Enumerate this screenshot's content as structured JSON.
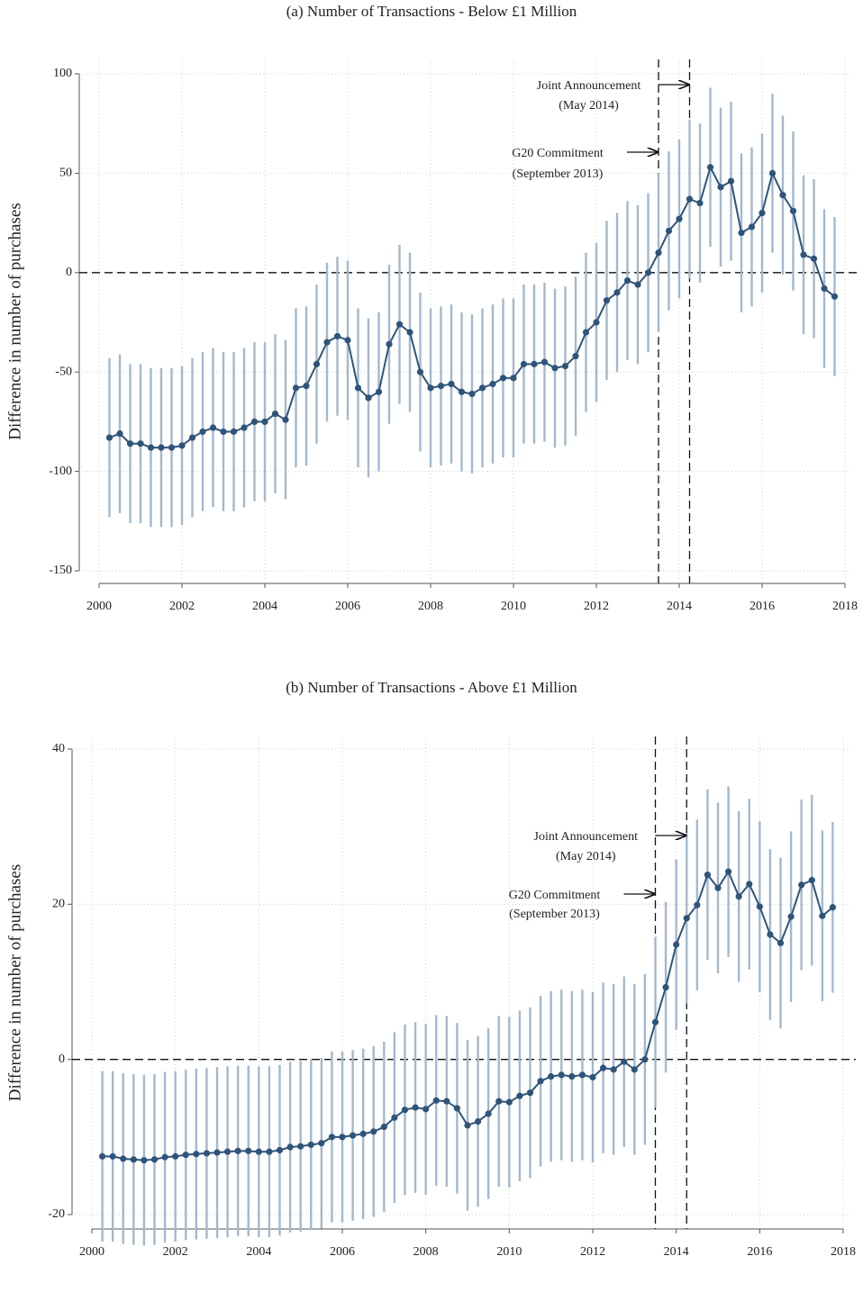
{
  "chart_data": [
    {
      "type": "line",
      "title": "(a) Number of Transactions - Below £1 Million",
      "y_label": "Difference in number of purchases",
      "x": [
        2000.25,
        2000.5,
        2000.75,
        2001,
        2001.25,
        2001.5,
        2001.75,
        2002,
        2002.25,
        2002.5,
        2002.75,
        2003,
        2003.25,
        2003.5,
        2003.75,
        2004,
        2004.25,
        2004.5,
        2004.75,
        2005,
        2005.25,
        2005.5,
        2005.75,
        2006,
        2006.25,
        2006.5,
        2006.75,
        2007,
        2007.25,
        2007.5,
        2007.75,
        2008,
        2008.25,
        2008.5,
        2008.75,
        2009,
        2009.25,
        2009.5,
        2009.75,
        2010,
        2010.25,
        2010.5,
        2010.75,
        2011,
        2011.25,
        2011.5,
        2011.75,
        2012,
        2012.25,
        2012.5,
        2012.75,
        2013,
        2013.25,
        2013.5,
        2013.75,
        2014,
        2014.25,
        2014.5,
        2014.75,
        2015,
        2015.25,
        2015.5,
        2015.75,
        2016,
        2016.25,
        2016.5,
        2016.75,
        2017,
        2017.25,
        2017.5,
        2017.75
      ],
      "series": [
        {
          "color": "#2f5479",
          "error_color": "#a3b8cc",
          "values": [
            -83,
            -81,
            -86,
            -86,
            -88,
            -88,
            -88,
            -87,
            -83,
            -80,
            -78,
            -80,
            -80,
            -78,
            -75,
            -75,
            -71,
            -74,
            -58,
            -57,
            -46,
            -35,
            -32,
            -34,
            -58,
            -63,
            -60,
            -36,
            -26,
            -30,
            -50,
            -58,
            -57,
            -56,
            -60,
            -61,
            -58,
            -56,
            -53,
            -53,
            -46,
            -46,
            -45,
            -48,
            -47,
            -42,
            -30,
            -25,
            -14,
            -10,
            -4,
            -6,
            0,
            10,
            21,
            27,
            37,
            35,
            53,
            43,
            46,
            20,
            23,
            30,
            50,
            39,
            31,
            9,
            7,
            -8,
            -12
          ],
          "errors": [
            40,
            40,
            40,
            40,
            40,
            40,
            40,
            40,
            40,
            40,
            40,
            40,
            40,
            40,
            40,
            40,
            40,
            40,
            40,
            40,
            40,
            40,
            40,
            40,
            40,
            40,
            40,
            40,
            40,
            40,
            40,
            40,
            40,
            40,
            40,
            40,
            40,
            40,
            40,
            40,
            40,
            40,
            40,
            40,
            40,
            40,
            40,
            40,
            40,
            40,
            40,
            40,
            40,
            40,
            40,
            40,
            40,
            40,
            40,
            40,
            40,
            40,
            40,
            40,
            40,
            40,
            40,
            40,
            40,
            40,
            40
          ]
        }
      ],
      "xlim": [
        2000,
        2018
      ],
      "xticks": [
        2000,
        2002,
        2004,
        2006,
        2008,
        2010,
        2012,
        2014,
        2016,
        2018
      ],
      "ylim": [
        -150,
        100
      ],
      "yticks": [
        -150,
        -100,
        -50,
        0,
        50,
        100
      ],
      "grid": true,
      "hline": 0,
      "vlines": [
        2013.5,
        2014.25
      ],
      "annotations": [
        {
          "lines": [
            "Joint Announcement",
            "(May 2014)"
          ],
          "x": 2014.25
        },
        {
          "lines": [
            "G20 Commitment",
            "(September 2013)"
          ],
          "x": 2013.5
        }
      ]
    },
    {
      "type": "line",
      "title": "(b) Number of Transactions - Above £1 Million",
      "y_label": "Difference in number of purchases",
      "x": [
        2000.25,
        2000.5,
        2000.75,
        2001,
        2001.25,
        2001.5,
        2001.75,
        2002,
        2002.25,
        2002.5,
        2002.75,
        2003,
        2003.25,
        2003.5,
        2003.75,
        2004,
        2004.25,
        2004.5,
        2004.75,
        2005,
        2005.25,
        2005.5,
        2005.75,
        2006,
        2006.25,
        2006.5,
        2006.75,
        2007,
        2007.25,
        2007.5,
        2007.75,
        2008,
        2008.25,
        2008.5,
        2008.75,
        2009,
        2009.25,
        2009.5,
        2009.75,
        2010,
        2010.25,
        2010.5,
        2010.75,
        2011,
        2011.25,
        2011.5,
        2011.75,
        2012,
        2012.25,
        2012.5,
        2012.75,
        2013,
        2013.25,
        2013.5,
        2013.75,
        2014,
        2014.25,
        2014.5,
        2014.75,
        2015,
        2015.25,
        2015.5,
        2015.75,
        2016,
        2016.25,
        2016.5,
        2016.75,
        2017,
        2017.25,
        2017.5,
        2017.75
      ],
      "series": [
        {
          "color": "#2f5479",
          "error_color": "#a3b8cc",
          "values": [
            -12.5,
            -12.5,
            -12.8,
            -12.9,
            -13,
            -12.9,
            -12.6,
            -12.5,
            -12.3,
            -12.2,
            -12.1,
            -12,
            -11.9,
            -11.8,
            -11.8,
            -11.9,
            -11.9,
            -11.7,
            -11.3,
            -11.2,
            -11,
            -10.8,
            -10,
            -10,
            -9.8,
            -9.6,
            -9.3,
            -8.7,
            -7.5,
            -6.5,
            -6.2,
            -6.4,
            -5.3,
            -5.4,
            -6.3,
            -8.5,
            -8,
            -7,
            -5.4,
            -5.5,
            -4.7,
            -4.3,
            -2.8,
            -2.2,
            -2,
            -2.2,
            -2,
            -2.3,
            -1.1,
            -1.3,
            -0.3,
            -1.3,
            0,
            4.8,
            9.3,
            14.8,
            18.2,
            19.9,
            23.8,
            22.1,
            24.2,
            21,
            22.6,
            19.7,
            16.1,
            15,
            18.4,
            22.5,
            23.1,
            18.5,
            19.6
          ],
          "errors": [
            11,
            11,
            11,
            11,
            11,
            11,
            11,
            11,
            11,
            11,
            11,
            11,
            11,
            11,
            11,
            11,
            11,
            11,
            11,
            11,
            11,
            11,
            11,
            11,
            11,
            11,
            11,
            11,
            11,
            11,
            11,
            11,
            11,
            11,
            11,
            11,
            11,
            11,
            11,
            11,
            11,
            11,
            11,
            11,
            11,
            11,
            11,
            11,
            11,
            11,
            11,
            11,
            11,
            11,
            11,
            11,
            11,
            11,
            11,
            11,
            11,
            11,
            11,
            11,
            11,
            11,
            11,
            11,
            11,
            11,
            11
          ]
        }
      ],
      "xlim": [
        2000,
        2018
      ],
      "xticks": [
        2000,
        2002,
        2004,
        2006,
        2008,
        2010,
        2012,
        2014,
        2016,
        2018
      ],
      "ylim": [
        -20,
        40
      ],
      "yticks": [
        -20,
        0,
        20,
        40
      ],
      "grid": true,
      "hline": 0,
      "vlines": [
        2013.5,
        2014.25
      ],
      "annotations": [
        {
          "lines": [
            "Joint Announcement",
            "(May 2014)"
          ],
          "x": 2014.25
        },
        {
          "lines": [
            "G20 Commitment",
            "(September 2013)"
          ],
          "x": 2013.5
        }
      ]
    }
  ]
}
